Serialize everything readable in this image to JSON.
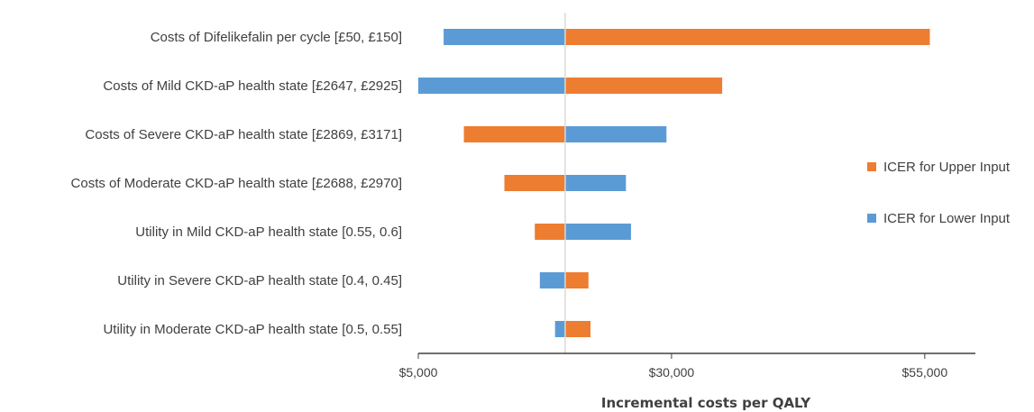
{
  "chart_data": {
    "type": "bar",
    "orientation": "horizontal",
    "subtype": "tornado",
    "title": "",
    "xlabel": "Incremental costs per QALY",
    "ylabel": "",
    "xlim": [
      5000,
      60000
    ],
    "baseline": 19500,
    "x_ticks": [
      5000,
      30000,
      55000
    ],
    "x_tick_labels": [
      "$5,000",
      "$30,000",
      "$55,000"
    ],
    "categories": [
      "Costs of Difelikefalin per cycle [£50, £150]",
      "Costs of Mild CKD-aP health state [£2647, £2925]",
      "Costs of Severe CKD-aP health state [£2869, £3171]",
      "Costs of Moderate CKD-aP health state [£2688, £2970]",
      "Utility in Mild CKD-aP health state [0.55, 0.6]",
      "Utility in Severe CKD-aP health state [0.4, 0.45]",
      "Utility in Moderate CKD-aP health state [0.5, 0.55]"
    ],
    "series": [
      {
        "name": "ICER for Upper Input",
        "color": "#ED7D31",
        "values": [
          55500,
          35000,
          9500,
          13500,
          16500,
          21800,
          22000
        ]
      },
      {
        "name": "ICER for Lower Input",
        "color": "#5B9BD5",
        "values": [
          7500,
          5000,
          29500,
          25500,
          26000,
          17000,
          18500
        ]
      }
    ],
    "legend_position": "right",
    "grid": false
  }
}
